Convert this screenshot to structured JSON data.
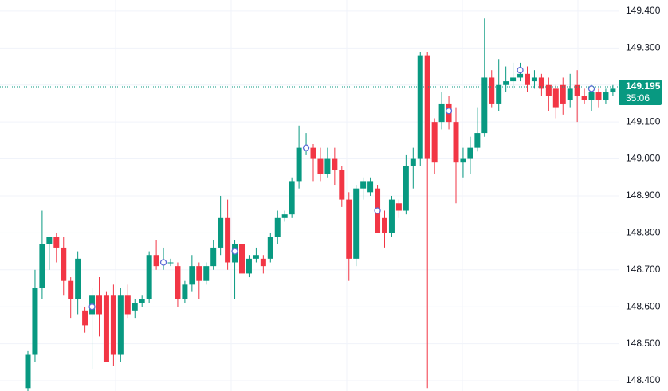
{
  "chart_data": {
    "type": "candlestick",
    "up_color": "#089981",
    "down_color": "#f23645",
    "grid": true,
    "ylim": [
      148.372,
      149.43
    ],
    "yticks": [
      {
        "value": 148.4,
        "label": "148.400"
      },
      {
        "value": 148.5,
        "label": "148.500"
      },
      {
        "value": 148.6,
        "label": "148.600"
      },
      {
        "value": 148.7,
        "label": "148.700"
      },
      {
        "value": 148.8,
        "label": "148.800"
      },
      {
        "value": 148.9,
        "label": "148.900"
      },
      {
        "value": 149.0,
        "label": "149.000"
      },
      {
        "value": 149.1,
        "label": "149.100"
      },
      {
        "value": 149.2,
        "label": "149.200"
      },
      {
        "value": 149.3,
        "label": "149.300"
      },
      {
        "value": 149.4,
        "label": "149.400"
      }
    ],
    "open": [
      148.38,
      148.47,
      148.65,
      148.77,
      148.79,
      148.76,
      148.67,
      148.62,
      148.59,
      148.58,
      148.63,
      148.63,
      148.63,
      148.47,
      148.63,
      148.59,
      148.61,
      148.62,
      148.74,
      148.72,
      148.72,
      148.71,
      148.62,
      148.66,
      148.71,
      148.67,
      148.71,
      148.76,
      148.84,
      148.72,
      148.77,
      148.69,
      148.73,
      148.73,
      148.73,
      148.79,
      148.84,
      148.85,
      148.94,
      149.03,
      149.03,
      149.0,
      148.96,
      149.0,
      148.97,
      148.89,
      148.73,
      148.92,
      148.91,
      148.92,
      148.84,
      148.8,
      148.88,
      148.86,
      148.98,
      149.0,
      149.28,
      149.1,
      149.1,
      149.15,
      149.1,
      148.99,
      149.0,
      149.03,
      149.07,
      149.22,
      149.15,
      149.2,
      149.21,
      149.22,
      149.23,
      149.21,
      149.22,
      149.2,
      149.19,
      149.2,
      149.16,
      149.2,
      149.17,
      149.16,
      149.18,
      149.16,
      149.18
    ],
    "high": [
      148.48,
      148.7,
      148.86,
      148.79,
      148.8,
      148.79,
      148.68,
      148.75,
      148.6,
      148.65,
      148.68,
      148.64,
      148.66,
      148.65,
      148.66,
      148.62,
      148.63,
      148.75,
      148.78,
      148.76,
      148.73,
      148.72,
      148.67,
      148.74,
      148.72,
      148.72,
      148.78,
      148.9,
      148.89,
      148.78,
      148.78,
      148.74,
      148.76,
      148.74,
      148.8,
      148.86,
      148.86,
      148.95,
      149.09,
      149.07,
      149.04,
      149.03,
      149.03,
      149.03,
      148.98,
      148.91,
      148.93,
      148.95,
      148.95,
      148.93,
      148.86,
      148.9,
      148.89,
      149.01,
      149.03,
      149.29,
      149.29,
      149.11,
      149.18,
      149.17,
      149.14,
      149.03,
      149.06,
      149.14,
      149.38,
      149.24,
      149.27,
      149.25,
      149.26,
      149.26,
      149.25,
      149.24,
      149.23,
      149.22,
      149.2,
      149.22,
      149.23,
      149.24,
      149.19,
      149.2,
      149.19,
      149.19,
      149.2
    ],
    "low": [
      148.37,
      148.45,
      148.62,
      148.7,
      148.72,
      148.63,
      148.57,
      148.58,
      148.53,
      148.43,
      148.52,
      148.45,
      148.44,
      148.45,
      148.57,
      148.57,
      148.6,
      148.61,
      148.7,
      148.7,
      148.71,
      148.6,
      148.61,
      148.64,
      148.62,
      148.66,
      148.7,
      148.74,
      148.7,
      148.62,
      148.57,
      148.68,
      148.72,
      148.69,
      148.72,
      148.77,
      148.83,
      148.84,
      148.92,
      149.01,
      148.94,
      148.94,
      148.95,
      148.93,
      148.87,
      148.67,
      148.71,
      148.89,
      148.9,
      148.8,
      148.76,
      148.79,
      148.84,
      148.85,
      148.92,
      148.98,
      148.38,
      148.96,
      149.08,
      149.08,
      148.88,
      148.95,
      148.96,
      149.02,
      149.06,
      149.14,
      149.13,
      149.18,
      149.19,
      149.21,
      149.18,
      149.19,
      149.17,
      149.13,
      149.11,
      149.12,
      149.14,
      149.1,
      149.15,
      149.13,
      149.14,
      149.15,
      149.17
    ],
    "close": [
      148.47,
      148.65,
      148.77,
      148.79,
      148.76,
      148.67,
      148.62,
      148.73,
      148.55,
      148.63,
      148.58,
      148.45,
      148.47,
      148.63,
      148.58,
      148.61,
      148.62,
      148.74,
      148.71,
      148.72,
      148.72,
      148.62,
      148.66,
      148.71,
      148.67,
      148.71,
      148.76,
      148.84,
      148.72,
      148.77,
      148.69,
      148.73,
      148.74,
      148.71,
      148.79,
      148.84,
      148.85,
      148.94,
      149.03,
      149.03,
      149.0,
      148.96,
      149.0,
      148.97,
      148.89,
      148.73,
      148.92,
      148.94,
      148.94,
      148.8,
      148.8,
      148.89,
      148.86,
      148.98,
      149.0,
      149.28,
      149.0,
      148.99,
      149.15,
      149.1,
      148.99,
      149.0,
      149.03,
      149.07,
      149.22,
      149.15,
      149.2,
      149.21,
      149.22,
      149.23,
      149.2,
      149.22,
      149.19,
      149.17,
      149.14,
      149.15,
      149.19,
      149.17,
      149.16,
      149.18,
      149.16,
      149.18,
      149.19
    ],
    "markers": {
      "x": [
        9,
        19,
        29,
        39,
        49,
        59,
        69,
        79
      ],
      "y": [
        148.6,
        148.72,
        148.75,
        149.03,
        148.86,
        149.13,
        149.24,
        149.19
      ]
    },
    "last_price": 149.195,
    "countdown": "35:06"
  }
}
